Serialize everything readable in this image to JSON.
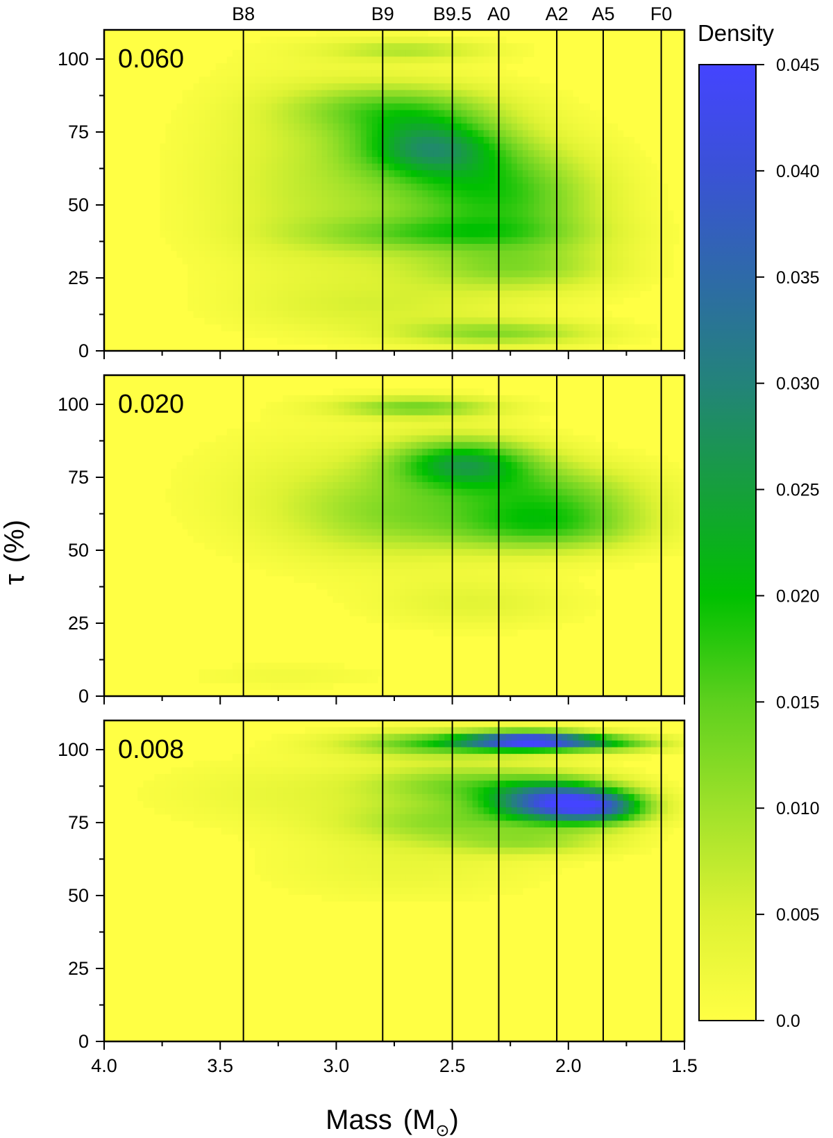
{
  "chart_data": {
    "type": "heatmap",
    "xlabel": "Mass",
    "xlabel_unit": "(M",
    "xlabel_unit_symbol": "⊙",
    "xlabel_unit_close": ")",
    "ylabel": "τ",
    "ylabel_unit": "(%)",
    "xlim": [
      4.0,
      1.5
    ],
    "ylim": [
      0,
      110
    ],
    "x_ticks": [
      "4.0",
      "3.5",
      "3.0",
      "2.5",
      "2.0",
      "1.5"
    ],
    "y_ticks": [
      "0",
      "25",
      "50",
      "75",
      "100"
    ],
    "spectral_types": [
      {
        "label": "B8",
        "mass": 3.4
      },
      {
        "label": "B9",
        "mass": 2.8
      },
      {
        "label": "B9.5",
        "mass": 2.5
      },
      {
        "label": "A0",
        "mass": 2.3
      },
      {
        "label": "A2",
        "mass": 2.05
      },
      {
        "label": "A5",
        "mass": 1.85
      },
      {
        "label": "F0",
        "mass": 1.6
      }
    ],
    "colorbar": {
      "title": "Density",
      "range": [
        0.0,
        0.045
      ],
      "ticks": [
        "0.0",
        "0.005",
        "0.010",
        "0.015",
        "0.020",
        "0.025",
        "0.030",
        "0.035",
        "0.040",
        "0.045"
      ],
      "colors": [
        "#ffff44",
        "#ddf233",
        "#9fe12a",
        "#5ed01e",
        "#00c000",
        "#169f3c",
        "#23837a",
        "#2e6aa8",
        "#3a52d6",
        "#4444ff"
      ]
    },
    "panels": [
      {
        "label": "0.060",
        "peaks": [
          {
            "mass": 2.6,
            "tau": 70,
            "sx": 0.22,
            "st": 7,
            "amp": 0.019
          },
          {
            "mass": 2.75,
            "tau": 83,
            "sx": 0.3,
            "st": 6,
            "amp": 0.012
          },
          {
            "mass": 2.35,
            "tau": 55,
            "sx": 0.28,
            "st": 12,
            "amp": 0.013
          },
          {
            "mass": 2.55,
            "tau": 40,
            "sx": 0.4,
            "st": 4,
            "amp": 0.009
          },
          {
            "mass": 2.25,
            "tau": 28,
            "sx": 0.3,
            "st": 5,
            "amp": 0.008
          },
          {
            "mass": 2.3,
            "tau": 6,
            "sx": 0.3,
            "st": 3,
            "amp": 0.011
          },
          {
            "mass": 2.7,
            "tau": 103,
            "sx": 0.25,
            "st": 2.5,
            "amp": 0.008
          },
          {
            "mass": 2.8,
            "tau": 55,
            "sx": 0.4,
            "st": 22,
            "amp": 0.006
          },
          {
            "mass": 3.2,
            "tau": 60,
            "sx": 0.3,
            "st": 25,
            "amp": 0.003
          },
          {
            "mass": 2.1,
            "tau": 45,
            "sx": 0.25,
            "st": 15,
            "amp": 0.005
          },
          {
            "mass": 2.8,
            "tau": 15,
            "sx": 0.4,
            "st": 6,
            "amp": 0.004
          }
        ]
      },
      {
        "label": "0.020",
        "peaks": [
          {
            "mass": 2.45,
            "tau": 80,
            "sx": 0.22,
            "st": 6,
            "amp": 0.021
          },
          {
            "mass": 2.1,
            "tau": 68,
            "sx": 0.3,
            "st": 8,
            "amp": 0.014
          },
          {
            "mass": 2.1,
            "tau": 57,
            "sx": 0.3,
            "st": 6,
            "amp": 0.012
          },
          {
            "mass": 2.65,
            "tau": 99,
            "sx": 0.25,
            "st": 2.5,
            "amp": 0.013
          },
          {
            "mass": 2.75,
            "tau": 62,
            "sx": 0.3,
            "st": 10,
            "amp": 0.008
          },
          {
            "mass": 2.4,
            "tau": 32,
            "sx": 0.3,
            "st": 6,
            "amp": 0.004
          },
          {
            "mass": 3.0,
            "tau": 70,
            "sx": 0.4,
            "st": 15,
            "amp": 0.004
          },
          {
            "mass": 3.2,
            "tau": 7,
            "sx": 0.3,
            "st": 3,
            "amp": 0.002
          }
        ]
      },
      {
        "label": "0.008",
        "peaks": [
          {
            "mass": 2.15,
            "tau": 103,
            "sx": 0.2,
            "st": 2.2,
            "amp": 0.04
          },
          {
            "mass": 2.55,
            "tau": 102,
            "sx": 0.3,
            "st": 3,
            "amp": 0.016
          },
          {
            "mass": 1.8,
            "tau": 102,
            "sx": 0.18,
            "st": 2,
            "amp": 0.012
          },
          {
            "mass": 2.05,
            "tau": 82,
            "sx": 0.2,
            "st": 5,
            "amp": 0.036
          },
          {
            "mass": 1.85,
            "tau": 80,
            "sx": 0.15,
            "st": 4,
            "amp": 0.02
          },
          {
            "mass": 2.45,
            "tau": 88,
            "sx": 0.3,
            "st": 5,
            "amp": 0.012
          },
          {
            "mass": 2.55,
            "tau": 75,
            "sx": 0.3,
            "st": 5,
            "amp": 0.01
          },
          {
            "mass": 2.15,
            "tau": 68,
            "sx": 0.25,
            "st": 3,
            "amp": 0.008
          },
          {
            "mass": 2.7,
            "tau": 60,
            "sx": 0.4,
            "st": 8,
            "amp": 0.003
          },
          {
            "mass": 3.2,
            "tau": 85,
            "sx": 0.4,
            "st": 8,
            "amp": 0.003
          }
        ]
      }
    ]
  }
}
